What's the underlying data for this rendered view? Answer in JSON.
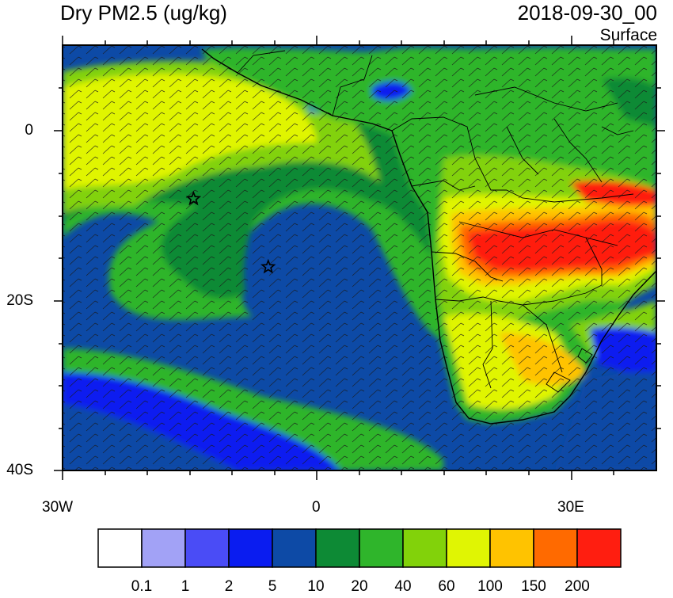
{
  "title": "Dry PM2.5 (ug/kg)",
  "datetime": "2018-09-30_00",
  "level": "Surface",
  "axes": {
    "lat_ticks": [
      {
        "label": "0"
      },
      {
        "label": "20S"
      },
      {
        "label": "40S"
      }
    ],
    "lon_ticks": [
      {
        "label": "30W"
      },
      {
        "label": "0"
      },
      {
        "label": "30E"
      }
    ]
  },
  "colorbar": {
    "colors": [
      "#ffffff",
      "#a2a2f6",
      "#4a4cf6",
      "#0a1cf0",
      "#0d4aa6",
      "#0d8a35",
      "#2fb52b",
      "#82d20a",
      "#e0f503",
      "#ffc300",
      "#ff6a00",
      "#ff1e10"
    ],
    "labels": [
      "0.1",
      "1",
      "2",
      "5",
      "10",
      "20",
      "40",
      "60",
      "100",
      "150",
      "200"
    ]
  },
  "markers": [
    {
      "name": "star-marker",
      "lon": -14.5,
      "lat": -8
    },
    {
      "name": "star-marker",
      "lon": -5.7,
      "lat": -16
    }
  ],
  "palette": {
    "ocean_deep": "#0d4aa6",
    "green": "#0d8a35",
    "light_green": "#2fb52b",
    "yellow_green": "#82d20a",
    "yellow": "#e0f503",
    "orange": "#ffc300",
    "red": "#ff1e10",
    "blue": "#0a1cf0"
  }
}
